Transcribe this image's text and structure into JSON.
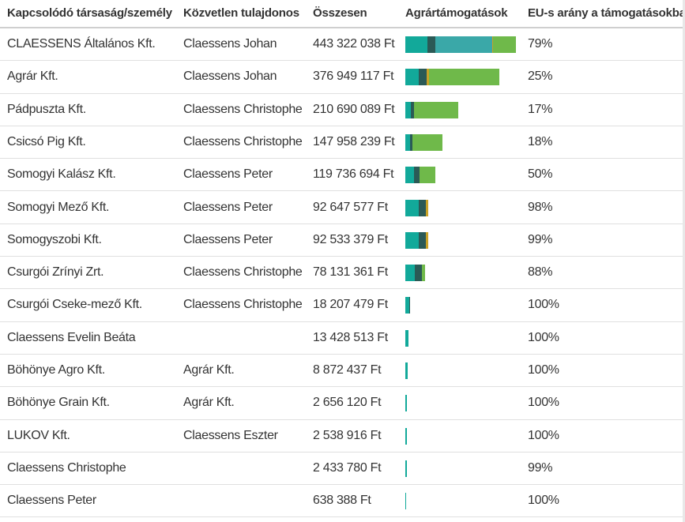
{
  "columns": {
    "company": "Kapcsolódó társaság/személy",
    "owner": "Közvetlen tulajdonos",
    "total": "Összesen",
    "agri": "Agrártámogatások",
    "eu_share": "EU-s arány a támogatásokba"
  },
  "colors": {
    "seg0": "#12a99a",
    "seg1": "#2b5a56",
    "seg2": "#3aa8a8",
    "seg3": "#c9a227",
    "seg4": "#6fb94a"
  },
  "rows": [
    {
      "company": "CLAESSENS Általános Kft.",
      "owner": "Claessens Johan",
      "total": "443 322 038 Ft",
      "eu_share": "79%",
      "segments": [
        28,
        10,
        72,
        1,
        29
      ]
    },
    {
      "company": "Agrár Kft.",
      "owner": "Claessens Johan",
      "total": "376 949 117 Ft",
      "eu_share": "25%",
      "segments": [
        17,
        10,
        0,
        3,
        89
      ]
    },
    {
      "company": "Pádpuszta Kft.",
      "owner": "Claessens Christophe",
      "total": "210 690 089 Ft",
      "eu_share": "17%",
      "segments": [
        7,
        4,
        0,
        0,
        56
      ]
    },
    {
      "company": "Csicsó Pig Kft.",
      "owner": "Claessens Christophe",
      "total": "147 958 239 Ft",
      "eu_share": "18%",
      "segments": [
        6,
        3,
        0,
        0,
        38
      ]
    },
    {
      "company": "Somogyi Kalász Kft.",
      "owner": "Claessens Peter",
      "total": "119 736 694 Ft",
      "eu_share": "50%",
      "segments": [
        11,
        7,
        0,
        0,
        20
      ]
    },
    {
      "company": "Somogyi Mező Kft.",
      "owner": "Claessens Peter",
      "total": "92 647 577 Ft",
      "eu_share": "98%",
      "segments": [
        17,
        9,
        0,
        3,
        0
      ]
    },
    {
      "company": "Somogyszobi Kft.",
      "owner": "Claessens Peter",
      "total": "92 533 379 Ft",
      "eu_share": "99%",
      "segments": [
        17,
        9,
        0,
        3,
        0
      ]
    },
    {
      "company": "Csurgói Zrínyi Zrt.",
      "owner": "Claessens Christophe",
      "total": "78 131 361 Ft",
      "eu_share": "88%",
      "segments": [
        12,
        9,
        0,
        0,
        4
      ]
    },
    {
      "company": "Csurgói Cseke-mező Kft.",
      "owner": "Claessens Christophe",
      "total": "18 207 479 Ft",
      "eu_share": "100%",
      "segments": [
        5,
        1,
        0,
        0,
        0
      ]
    },
    {
      "company": "Claessens Evelin Beáta",
      "owner": "",
      "total": "13 428 513 Ft",
      "eu_share": "100%",
      "segments": [
        4,
        0,
        0,
        0,
        0
      ]
    },
    {
      "company": "Böhönye Agro Kft.",
      "owner": "Agrár Kft.",
      "total": "8 872 437 Ft",
      "eu_share": "100%",
      "segments": [
        3,
        0,
        0,
        0,
        0
      ]
    },
    {
      "company": "Böhönye Grain Kft.",
      "owner": "Agrár Kft.",
      "total": "2 656 120 Ft",
      "eu_share": "100%",
      "segments": [
        2,
        0,
        0,
        0,
        0
      ]
    },
    {
      "company": "LUKOV Kft.",
      "owner": "Claessens Eszter",
      "total": "2 538 916 Ft",
      "eu_share": "100%",
      "segments": [
        2,
        0,
        0,
        0,
        0
      ]
    },
    {
      "company": "Claessens Christophe",
      "owner": "",
      "total": "2 433 780 Ft",
      "eu_share": "99%",
      "segments": [
        2,
        0,
        0,
        0,
        0
      ]
    },
    {
      "company": "Claessens Peter",
      "owner": "",
      "total": "638 388 Ft",
      "eu_share": "100%",
      "segments": [
        1,
        0,
        0,
        0,
        0
      ]
    }
  ]
}
